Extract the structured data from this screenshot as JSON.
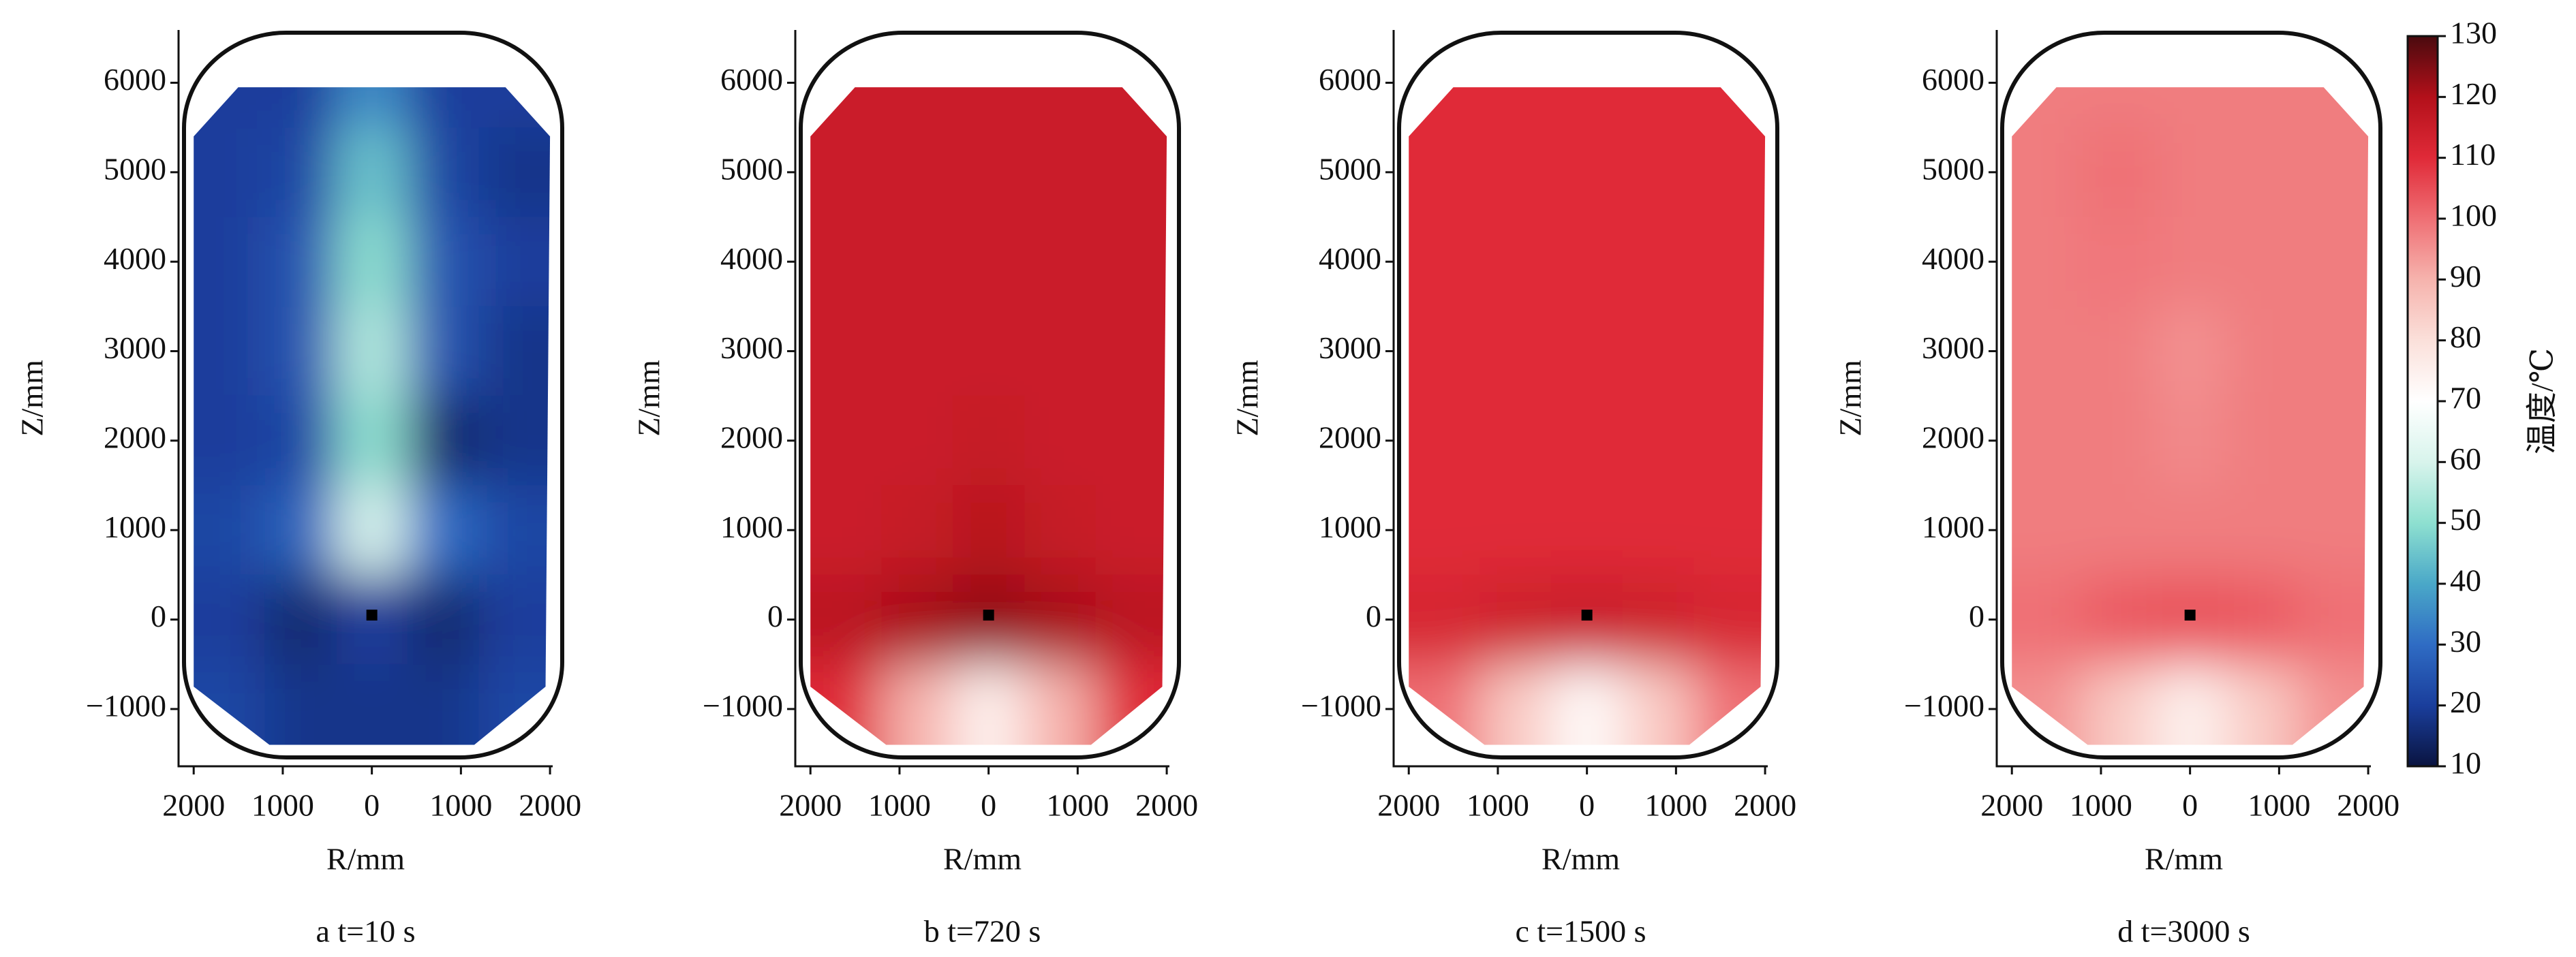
{
  "chart_data": [
    {
      "type": "heatmap",
      "xlabel": "R/mm",
      "ylabel": "Z/mm",
      "caption": "a  t=10 s",
      "xlim": [
        -2170,
        2030
      ],
      "ylim": [
        -1640,
        6590
      ],
      "xticks": [
        {
          "value": -2000,
          "label": "2000"
        },
        {
          "value": -1000,
          "label": "1000"
        },
        0,
        1000,
        2000
      ],
      "yticks": [
        {
          "value": -1000,
          "label": "−1000"
        },
        0,
        1000,
        2000,
        3000,
        4000,
        5000,
        6000
      ],
      "field": {
        "r": [
          -1600,
          -800,
          0,
          800,
          1600
        ],
        "z": [
          6000,
          5000,
          4000,
          3000,
          2000,
          1000,
          0,
          -1000
        ],
        "values": [
          [
            20,
            20,
            35,
            20,
            20
          ],
          [
            20,
            22,
            45,
            22,
            18
          ],
          [
            20,
            25,
            50,
            25,
            20
          ],
          [
            20,
            25,
            55,
            25,
            18
          ],
          [
            20,
            22,
            50,
            15,
            18
          ],
          [
            22,
            28,
            60,
            30,
            22
          ],
          [
            20,
            15,
            20,
            15,
            20
          ],
          [
            22,
            18,
            18,
            18,
            22
          ]
        ]
      }
    },
    {
      "type": "heatmap",
      "xlabel": "R/mm",
      "ylabel": "Z/mm",
      "caption": "b  t=720 s",
      "xlim": [
        -2170,
        2030
      ],
      "ylim": [
        -1640,
        6590
      ],
      "xticks": [
        {
          "value": -2000,
          "label": "2000"
        },
        {
          "value": -1000,
          "label": "1000"
        },
        0,
        1000,
        2000
      ],
      "yticks": [
        {
          "value": -1000,
          "label": "−1000"
        },
        0,
        1000,
        2000,
        3000,
        4000,
        5000,
        6000
      ],
      "field": {
        "r": [
          -1600,
          -800,
          0,
          800,
          1600
        ],
        "z": [
          6000,
          5000,
          4000,
          3000,
          2000,
          1000,
          0,
          -1000
        ],
        "values": [
          [
            115,
            115,
            115,
            115,
            115
          ],
          [
            115,
            115,
            115,
            115,
            115
          ],
          [
            115,
            115,
            115,
            115,
            115
          ],
          [
            115,
            115,
            115,
            115,
            115
          ],
          [
            115,
            115,
            116,
            115,
            115
          ],
          [
            115,
            116,
            119,
            116,
            115
          ],
          [
            118,
            121,
            123,
            121,
            118
          ],
          [
            110,
            90,
            75,
            90,
            110
          ]
        ]
      }
    },
    {
      "type": "heatmap",
      "xlabel": "R/mm",
      "ylabel": "Z/mm",
      "caption": "c  t=1500 s",
      "xlim": [
        -2170,
        2030
      ],
      "ylim": [
        -1640,
        6590
      ],
      "xticks": [
        {
          "value": -2000,
          "label": "2000"
        },
        {
          "value": -1000,
          "label": "1000"
        },
        0,
        1000,
        2000
      ],
      "yticks": [
        {
          "value": -1000,
          "label": "−1000"
        },
        0,
        1000,
        2000,
        3000,
        4000,
        5000,
        6000
      ],
      "field": {
        "r": [
          -1600,
          -800,
          0,
          800,
          1600
        ],
        "z": [
          6000,
          5000,
          4000,
          3000,
          2000,
          1000,
          0,
          -1000
        ],
        "values": [
          [
            110,
            110,
            110,
            110,
            110
          ],
          [
            110,
            110,
            110,
            110,
            110
          ],
          [
            110,
            110,
            110,
            110,
            110
          ],
          [
            110,
            110,
            110,
            110,
            110
          ],
          [
            110,
            110,
            110,
            110,
            110
          ],
          [
            110,
            110,
            110,
            110,
            110
          ],
          [
            112,
            114,
            115,
            114,
            112
          ],
          [
            100,
            85,
            72,
            85,
            100
          ]
        ]
      }
    },
    {
      "type": "heatmap",
      "xlabel": "R/mm",
      "ylabel": "Z/mm",
      "caption": "d  t=3000 s",
      "xlim": [
        -2170,
        2030
      ],
      "ylim": [
        -1640,
        6590
      ],
      "xticks": [
        {
          "value": -2000,
          "label": "2000"
        },
        {
          "value": -1000,
          "label": "1000"
        },
        0,
        1000,
        2000
      ],
      "yticks": [
        {
          "value": -1000,
          "label": "−1000"
        },
        0,
        1000,
        2000,
        3000,
        4000,
        5000,
        6000
      ],
      "field": {
        "r": [
          -1600,
          -800,
          0,
          800,
          1600
        ],
        "z": [
          6000,
          5000,
          4000,
          3000,
          2000,
          1000,
          0,
          -1000
        ],
        "values": [
          [
            98,
            98,
            98,
            98,
            98
          ],
          [
            98,
            100,
            98,
            98,
            98
          ],
          [
            98,
            99,
            98,
            98,
            98
          ],
          [
            98,
            98,
            95,
            98,
            98
          ],
          [
            98,
            98,
            96,
            98,
            98
          ],
          [
            98,
            98,
            98,
            98,
            98
          ],
          [
            100,
            103,
            104,
            103,
            100
          ],
          [
            95,
            85,
            75,
            85,
            95
          ]
        ]
      }
    }
  ],
  "colorbar": {
    "label": "温度/℃",
    "lim": [
      10,
      130
    ],
    "ticks": [
      10,
      20,
      30,
      40,
      50,
      60,
      70,
      80,
      90,
      100,
      110,
      120,
      130
    ],
    "colors": [
      "#0a1440",
      "#1a3e9c",
      "#2f6cc4",
      "#4aa8c8",
      "#8ee0d0",
      "#d8f4ec",
      "#ffffff",
      "#fbe0da",
      "#f6b3ad",
      "#ef6f74",
      "#e02a38",
      "#b3101a",
      "#4a0a0e"
    ]
  }
}
